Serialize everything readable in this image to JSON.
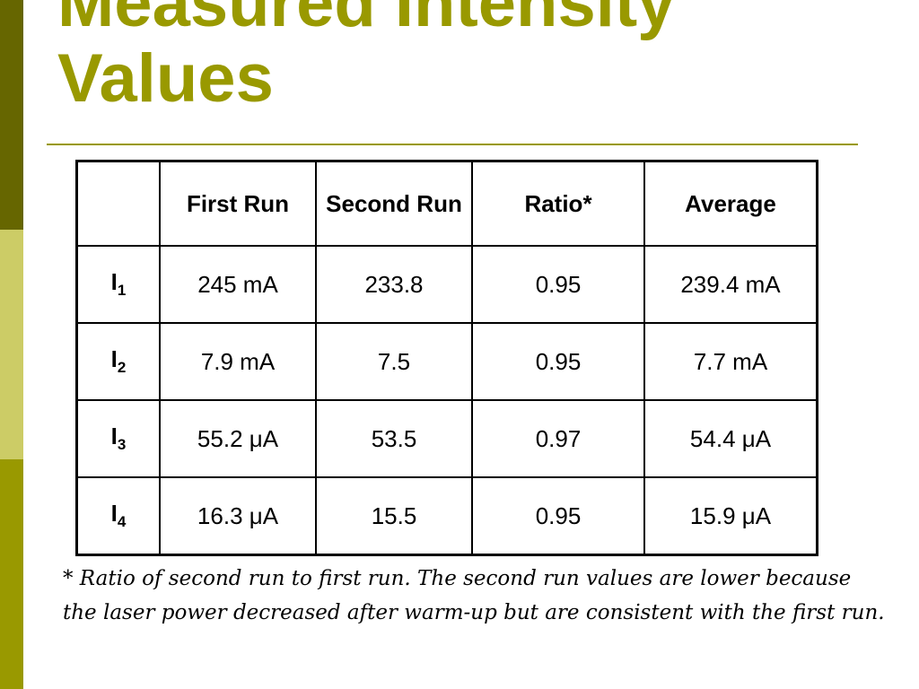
{
  "title": {
    "line1": "Measured Intensity",
    "line2": "Values"
  },
  "colors": {
    "accent": "#999900",
    "bar_dark": "#666600",
    "bar_light": "#cccc66"
  },
  "table": {
    "headers": [
      "",
      "First Run",
      "Second Run",
      "Ratio*",
      "Average"
    ],
    "rows": [
      {
        "label_main": "I",
        "label_sub": "1",
        "cells": [
          "245 mA",
          "233.8",
          "0.95",
          "239.4 mA"
        ]
      },
      {
        "label_main": "I",
        "label_sub": "2",
        "cells": [
          "7.9 mA",
          "7.5",
          "0.95",
          "7.7 mA"
        ]
      },
      {
        "label_main": "I",
        "label_sub": "3",
        "cells": [
          "55.2 μA",
          "53.5",
          "0.97",
          "54.4 μA"
        ]
      },
      {
        "label_main": "I",
        "label_sub": "4",
        "cells": [
          "16.3 μA",
          "15.5",
          "0.95",
          "15.9 μA"
        ]
      }
    ]
  },
  "footnote": "* Ratio of second run to first run. The second run values are lower because the laser power decreased after warm-up but are consistent with the first run."
}
